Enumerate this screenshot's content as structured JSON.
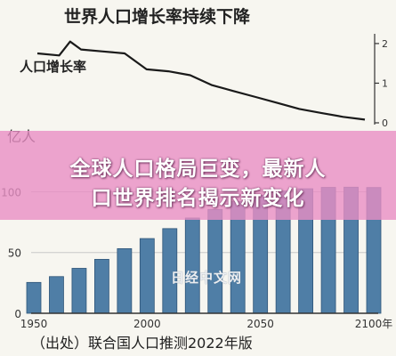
{
  "title": "世界人口增长率持续下降",
  "source": "（出处）联合国人口推测2022年版",
  "watermark": "日经中文网",
  "banner": {
    "line1": "全球人口格局巨变，最新人",
    "line2": "口世界排名揭示新变化"
  },
  "colors": {
    "bar": "#4f7ea6",
    "bar_edge": "#2f5578",
    "line": "#1a1a1a",
    "banner": "#e88ec4",
    "background": "#f7f6f0"
  },
  "chart_data": [
    {
      "type": "line",
      "series": [
        {
          "name": "人口增长率",
          "x": [
            1950,
            1960,
            1965,
            1970,
            1980,
            1990,
            2000,
            2010,
            2020,
            2030,
            2040,
            2050,
            2060,
            2070,
            2080,
            2090,
            2100
          ],
          "values": [
            1.75,
            1.7,
            2.05,
            1.85,
            1.8,
            1.75,
            1.35,
            1.3,
            1.2,
            0.95,
            0.8,
            0.65,
            0.5,
            0.35,
            0.25,
            0.15,
            0.08
          ]
        }
      ],
      "ylim": [
        0,
        2.2
      ],
      "ytick_labels": [
        "0",
        "1",
        "2"
      ],
      "yaxis_position": "right"
    },
    {
      "type": "bar",
      "ylabel": "亿人",
      "categories": [
        1950,
        1960,
        1970,
        1980,
        1990,
        2000,
        2010,
        2020,
        2030,
        2040,
        2050,
        2060,
        2070,
        2080,
        2090,
        2100
      ],
      "values": [
        25.4,
        30.2,
        37.0,
        44.4,
        53.2,
        61.5,
        69.7,
        78.4,
        85.5,
        91.9,
        97.1,
        100.6,
        102.5,
        103.6,
        103.8,
        103.5
      ],
      "ylim": [
        0,
        115
      ],
      "ytick_labels": [
        "0",
        "50",
        "100"
      ],
      "xtick_labels": [
        "1950",
        "2000",
        "2050",
        "2100年"
      ],
      "grid": "horizontal"
    }
  ]
}
